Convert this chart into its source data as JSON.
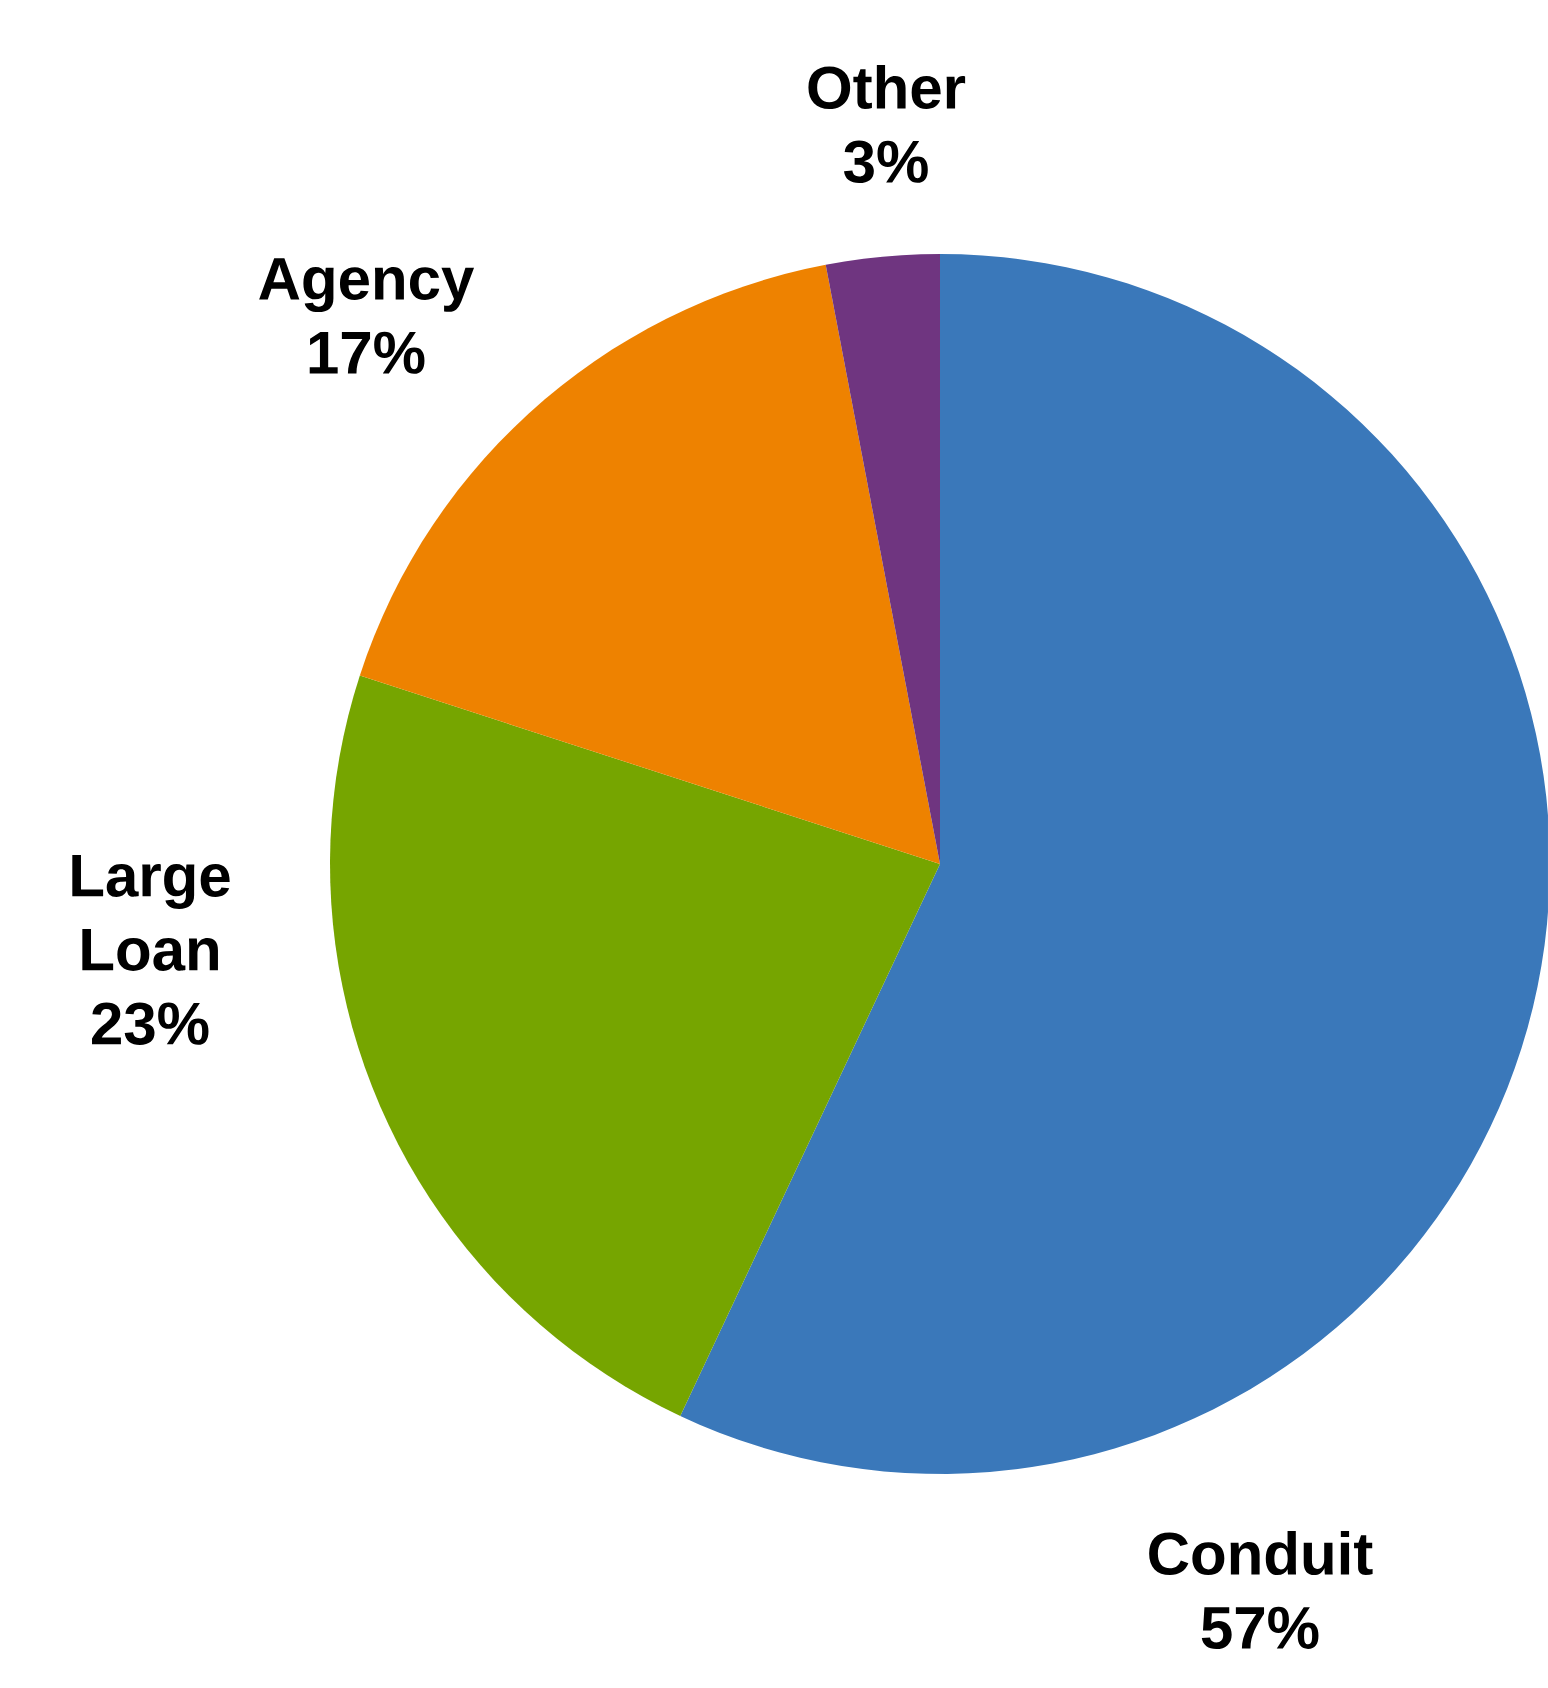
{
  "chart_data": {
    "type": "pie",
    "categories": [
      "Conduit",
      "Large Loan",
      "Agency",
      "Other"
    ],
    "values": [
      57,
      23,
      17,
      3
    ],
    "value_labels": [
      "57%",
      "23%",
      "17%",
      "3%"
    ],
    "colors": [
      "#3a78ba",
      "#76a500",
      "#ee8200",
      "#6f3580"
    ]
  }
}
